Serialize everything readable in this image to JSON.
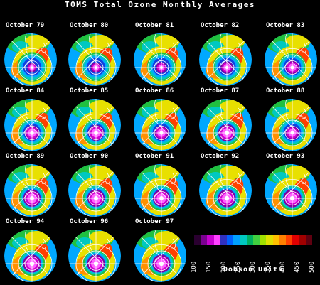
{
  "title": "TOMS Total Ozone Monthly Averages",
  "panels": [
    {
      "label": "October 79",
      "hole": 0.3
    },
    {
      "label": "October 80",
      "hole": 0.38
    },
    {
      "label": "October 81",
      "hole": 0.42
    },
    {
      "label": "October 82",
      "hole": 0.52
    },
    {
      "label": "October 83",
      "hole": 0.66
    },
    {
      "label": "October 84",
      "hole": 0.72
    },
    {
      "label": "October 85",
      "hole": 0.8
    },
    {
      "label": "October 86",
      "hole": 0.7
    },
    {
      "label": "October 87",
      "hole": 0.9
    },
    {
      "label": "October 88",
      "hole": 0.66
    },
    {
      "label": "October 89",
      "hole": 0.9
    },
    {
      "label": "October 90",
      "hole": 0.9
    },
    {
      "label": "October 91",
      "hole": 0.9
    },
    {
      "label": "October 92",
      "hole": 0.95
    },
    {
      "label": "October 93",
      "hole": 0.97
    },
    {
      "label": "October 94",
      "hole": 0.96
    },
    {
      "label": "October 96",
      "hole": 0.95
    },
    {
      "label": "October 97",
      "hole": 0.96
    }
  ],
  "scale": {
    "ticks": [
      "100",
      "150",
      "200",
      "250",
      "300",
      "350",
      "400",
      "450",
      "500"
    ],
    "unit": "Dobson Units",
    "colors": [
      "#2a0030",
      "#7a0090",
      "#c800d0",
      "#ff40ff",
      "#3030c0",
      "#0060ff",
      "#00a0ff",
      "#00c8c0",
      "#00b060",
      "#40d040",
      "#a0e000",
      "#e0e000",
      "#ffc000",
      "#ff8000",
      "#ff4000",
      "#e00000",
      "#a00000",
      "#600010"
    ]
  }
}
